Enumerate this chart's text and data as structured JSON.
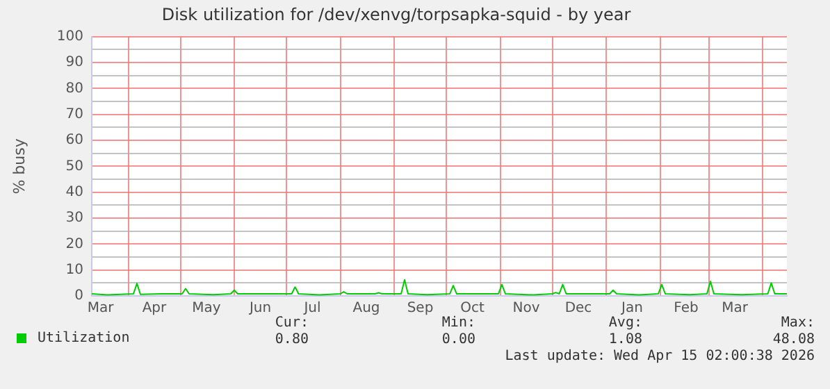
{
  "chart_data": {
    "type": "line",
    "title": "Disk utilization for /dev/xenvg/torpsapka-squid - by year",
    "ylabel": "% busy",
    "x": [
      "2025-03-11",
      "2025-03-20",
      "2025-04-04",
      "2025-04-06",
      "2025-04-08",
      "2025-04-20",
      "2025-05-02",
      "2025-05-04",
      "2025-05-06",
      "2025-05-20",
      "2025-05-30",
      "2025-06-01",
      "2025-06-03",
      "2025-06-20",
      "2025-07-04",
      "2025-07-06",
      "2025-07-08",
      "2025-07-20",
      "2025-08-01",
      "2025-08-03",
      "2025-08-05",
      "2025-08-21",
      "2025-08-23",
      "2025-08-25",
      "2025-09-05",
      "2025-09-07",
      "2025-09-09",
      "2025-09-20",
      "2025-10-03",
      "2025-10-05",
      "2025-10-07",
      "2025-10-20",
      "2025-10-31",
      "2025-11-02",
      "2025-11-04",
      "2025-11-20",
      "2025-12-01",
      "2025-12-03",
      "2025-12-05",
      "2025-12-07",
      "2025-12-09",
      "2025-12-20",
      "2026-01-03",
      "2026-01-05",
      "2026-01-07",
      "2026-01-20",
      "2026-01-31",
      "2026-02-02",
      "2026-02-04",
      "2026-02-18",
      "2026-02-28",
      "2026-03-02",
      "2026-03-04",
      "2026-03-20",
      "2026-04-04",
      "2026-04-06",
      "2026-04-08",
      "2026-04-15"
    ],
    "series": [
      {
        "name": "Utilization",
        "color": "#00cc00",
        "values": [
          0.8,
          0.4,
          0.8,
          4.8,
          0.6,
          0.8,
          0.8,
          2.8,
          0.8,
          0.5,
          0.8,
          2.2,
          0.8,
          0.8,
          0.8,
          3.4,
          0.8,
          0.4,
          0.8,
          1.6,
          0.8,
          0.8,
          1.2,
          0.8,
          0.8,
          6.2,
          0.8,
          0.5,
          0.8,
          4,
          0.8,
          0.8,
          0.8,
          4.4,
          0.8,
          0.4,
          0.8,
          1.3,
          0.8,
          4.4,
          0.8,
          0.8,
          0.8,
          2.2,
          0.8,
          0.4,
          0.8,
          4.4,
          0.8,
          0.5,
          0.8,
          5.6,
          0.8,
          0.5,
          0.8,
          5,
          0.8,
          0.8
        ]
      }
    ],
    "xlim": [
      "2025-03-11",
      "2026-04-15"
    ],
    "xticks": [
      {
        "value": "2025-04-01",
        "label": null
      },
      {
        "value": "2025-05-01",
        "label": null
      },
      {
        "value": "2025-06-01",
        "label": null
      },
      {
        "value": "2025-07-01",
        "label": null
      },
      {
        "value": "2025-08-01",
        "label": null
      },
      {
        "value": "2025-09-01",
        "label": null
      },
      {
        "value": "2025-10-01",
        "label": null
      },
      {
        "value": "2025-11-01",
        "label": null
      },
      {
        "value": "2025-12-01",
        "label": null
      },
      {
        "value": "2026-01-01",
        "label": null
      },
      {
        "value": "2026-02-01",
        "label": null
      },
      {
        "value": "2026-03-01",
        "label": null
      },
      {
        "value": "2026-04-01",
        "label": null
      },
      {
        "value": "2025-03-16",
        "label": "Mar"
      },
      {
        "value": "2025-04-16",
        "label": "Apr"
      },
      {
        "value": "2025-05-16",
        "label": "May"
      },
      {
        "value": "2025-06-16",
        "label": "Jun"
      },
      {
        "value": "2025-07-16",
        "label": "Jul"
      },
      {
        "value": "2025-08-16",
        "label": "Aug"
      },
      {
        "value": "2025-09-16",
        "label": "Sep"
      },
      {
        "value": "2025-10-16",
        "label": "Oct"
      },
      {
        "value": "2025-11-16",
        "label": "Nov"
      },
      {
        "value": "2025-12-16",
        "label": "Dec"
      },
      {
        "value": "2026-01-16",
        "label": "Jan"
      },
      {
        "value": "2026-02-16",
        "label": "Feb"
      },
      {
        "value": "2026-03-16",
        "label": "Mar"
      }
    ],
    "ylim": [
      0,
      100
    ],
    "yticks": [
      0,
      {
        "value": 5,
        "label": null
      },
      10,
      {
        "value": 15,
        "label": null
      },
      20,
      {
        "value": 25,
        "label": null
      },
      30,
      {
        "value": 35,
        "label": null
      },
      40,
      {
        "value": 45,
        "label": null
      },
      50,
      {
        "value": 55,
        "label": null
      },
      60,
      {
        "value": 65,
        "label": null
      },
      70,
      {
        "value": 75,
        "label": null
      },
      80,
      {
        "value": 85,
        "label": null
      },
      90,
      {
        "value": 95,
        "label": null
      },
      100
    ],
    "grid": true,
    "legend": "bottom left",
    "marker": "none",
    "line_style": "solid",
    "annotations": [
      "Cur:",
      "0.80",
      "Min:",
      "0.00",
      "Avg:",
      "1.08",
      "Max:",
      "48.08",
      "Last update: Wed Apr 15 02:00:38 2026"
    ]
  }
}
